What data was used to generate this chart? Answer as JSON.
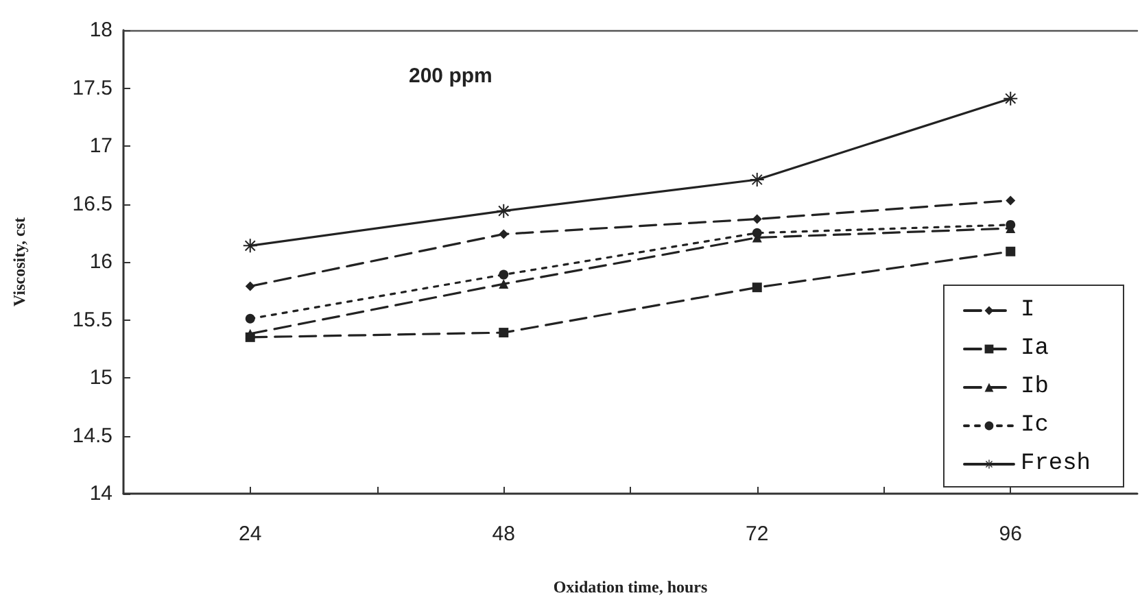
{
  "chart_data": {
    "type": "line",
    "xlabel": "Oxidation time, hours",
    "ylabel": "Viscosity, cst",
    "annotations": [
      "200 ppm"
    ],
    "x": [
      24,
      48,
      72,
      96
    ],
    "series": [
      {
        "name": "I",
        "color": "#222222",
        "marker": "diamond",
        "line_style": "dashed",
        "values": [
          15.79,
          16.24,
          16.37,
          16.53
        ]
      },
      {
        "name": "Ia",
        "color": "#222222",
        "marker": "square",
        "line_style": "dashed",
        "values": [
          15.35,
          15.39,
          15.78,
          16.09
        ]
      },
      {
        "name": "Ib",
        "color": "#222222",
        "marker": "triangle",
        "line_style": "dashed",
        "values": [
          15.38,
          15.81,
          16.21,
          16.29
        ]
      },
      {
        "name": "Ic",
        "color": "#222222",
        "marker": "circle",
        "line_style": "dotted",
        "values": [
          15.51,
          15.89,
          16.25,
          16.32
        ]
      },
      {
        "name": "Fresh",
        "color": "#222222",
        "marker": "cross",
        "line_style": "solid",
        "values": [
          16.14,
          16.44,
          16.71,
          17.41
        ]
      }
    ],
    "xlim": [
      12,
      108
    ],
    "xticks": [
      24,
      {
        "value": 36,
        "label": null
      },
      48,
      {
        "value": 60,
        "label": null
      },
      72,
      {
        "value": 84,
        "label": null
      },
      96
    ],
    "ylim": [
      14,
      18
    ],
    "yticks": [
      14,
      14.5,
      15,
      15.5,
      16,
      16.5,
      17,
      17.5,
      18
    ],
    "grid": false,
    "legend": "bottom right"
  }
}
